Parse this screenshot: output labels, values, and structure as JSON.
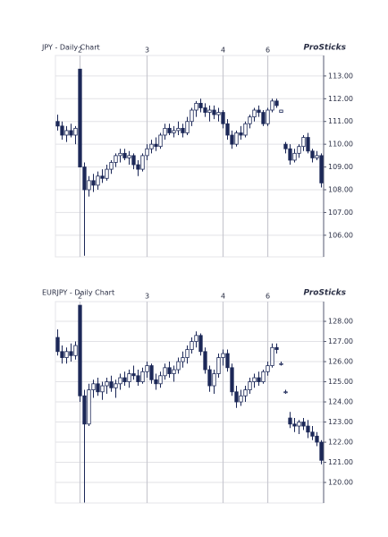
{
  "chart_data": [
    {
      "type": "candlestick",
      "title": "JPY - Daily Chart",
      "logo_text": "ProSticks",
      "color": "#1c2858",
      "grid": true,
      "categories": [
        null,
        null,
        null,
        null,
        null,
        "2",
        null,
        null,
        null,
        null,
        null,
        null,
        null,
        null,
        null,
        null,
        null,
        null,
        null,
        null,
        "3",
        null,
        null,
        null,
        null,
        null,
        null,
        null,
        null,
        null,
        null,
        null,
        null,
        null,
        null,
        null,
        null,
        "4",
        null,
        null,
        null,
        null,
        null,
        null,
        null,
        null,
        null,
        "6",
        null,
        null,
        null,
        null,
        null,
        null,
        null,
        null,
        null,
        null,
        null,
        null
      ],
      "open": [
        111.0,
        110.8,
        110.4,
        110.6,
        110.4,
        113.3,
        109.0,
        108.0,
        108.4,
        108.2,
        108.6,
        108.5,
        108.9,
        109.2,
        109.5,
        109.6,
        109.4,
        109.5,
        109.1,
        108.9,
        109.5,
        109.8,
        110.0,
        109.9,
        110.4,
        110.7,
        110.5,
        110.6,
        110.7,
        110.5,
        111.0,
        111.5,
        111.8,
        111.6,
        111.4,
        111.5,
        111.3,
        111.4,
        110.9,
        110.4,
        110.0,
        110.5,
        110.4,
        110.9,
        111.2,
        111.5,
        111.4,
        110.9,
        111.5,
        111.9,
        111.4,
        110.0,
        109.8,
        109.3,
        109.6,
        109.9,
        110.3,
        109.7,
        109.4,
        109.5
      ],
      "high": [
        111.3,
        111.0,
        110.8,
        110.9,
        110.8,
        113.3,
        109.2,
        108.6,
        108.7,
        108.8,
        108.9,
        109.1,
        109.3,
        109.6,
        109.8,
        109.8,
        109.7,
        109.6,
        109.3,
        109.6,
        110.0,
        110.2,
        110.3,
        110.5,
        110.9,
        110.9,
        110.8,
        111.0,
        110.9,
        111.2,
        111.6,
        111.9,
        112.0,
        111.8,
        111.7,
        111.7,
        111.6,
        111.5,
        111.1,
        110.6,
        110.6,
        110.8,
        111.0,
        111.3,
        111.6,
        111.7,
        111.5,
        111.6,
        112.0,
        112.0,
        111.5,
        110.1,
        110.0,
        109.8,
        110.0,
        110.4,
        110.5,
        109.8,
        109.7,
        109.6
      ],
      "low": [
        110.6,
        110.2,
        110.1,
        110.3,
        110.0,
        109.0,
        105.1,
        107.7,
        107.9,
        108.0,
        108.3,
        108.4,
        108.7,
        109.0,
        109.2,
        109.3,
        109.1,
        108.9,
        108.6,
        108.8,
        109.3,
        109.6,
        109.7,
        109.8,
        110.2,
        110.4,
        110.3,
        110.4,
        110.3,
        110.4,
        110.8,
        111.2,
        111.4,
        111.2,
        111.0,
        111.1,
        111.0,
        110.7,
        110.2,
        109.8,
        109.9,
        110.2,
        110.3,
        110.7,
        111.0,
        111.2,
        110.8,
        110.8,
        111.4,
        111.6,
        111.4,
        109.6,
        109.1,
        109.2,
        109.4,
        109.7,
        109.6,
        109.2,
        109.3,
        108.1
      ],
      "close": [
        110.8,
        110.4,
        110.6,
        110.4,
        110.7,
        109.0,
        108.0,
        108.4,
        108.2,
        108.6,
        108.5,
        108.9,
        109.2,
        109.5,
        109.6,
        109.4,
        109.5,
        109.1,
        108.9,
        109.5,
        109.8,
        110.0,
        109.9,
        110.4,
        110.7,
        110.5,
        110.6,
        110.7,
        110.5,
        111.0,
        111.5,
        111.8,
        111.6,
        111.4,
        111.5,
        111.3,
        111.4,
        110.9,
        110.4,
        110.0,
        110.5,
        110.4,
        110.9,
        111.2,
        111.5,
        111.4,
        110.9,
        111.5,
        111.9,
        111.7,
        111.5,
        109.8,
        109.3,
        109.6,
        109.9,
        110.3,
        109.7,
        109.4,
        109.5,
        108.3
      ],
      "ylim": [
        105.05,
        113.9
      ],
      "yticks": [
        {
          "value": 113,
          "label": "113.00"
        },
        {
          "value": 112,
          "label": "112.00"
        },
        {
          "value": 111,
          "label": "111.00"
        },
        {
          "value": 110,
          "label": "110.00"
        },
        {
          "value": 109,
          "label": "109.00"
        },
        {
          "value": 108,
          "label": "108.00"
        },
        {
          "value": 107,
          "label": "107.00"
        },
        {
          "value": 106,
          "label": "106.00"
        }
      ]
    },
    {
      "type": "candlestick",
      "title": "EURJPY - Daily Chart",
      "logo_text": "ProSticks",
      "color": "#1c2858",
      "grid": true,
      "categories": [
        null,
        null,
        null,
        null,
        null,
        "2",
        null,
        null,
        null,
        null,
        null,
        null,
        null,
        null,
        null,
        null,
        null,
        null,
        null,
        null,
        "3",
        null,
        null,
        null,
        null,
        null,
        null,
        null,
        null,
        null,
        null,
        null,
        null,
        null,
        null,
        null,
        null,
        "4",
        null,
        null,
        null,
        null,
        null,
        null,
        null,
        null,
        null,
        "6",
        null,
        null,
        null,
        null,
        null,
        null,
        null,
        null,
        null,
        null,
        null,
        null
      ],
      "open": [
        127.2,
        126.5,
        126.2,
        126.5,
        126.3,
        128.8,
        124.3,
        122.9,
        124.6,
        124.9,
        124.5,
        124.8,
        125.0,
        124.7,
        124.9,
        125.2,
        125.0,
        125.4,
        125.3,
        125.0,
        125.5,
        125.8,
        125.1,
        124.9,
        125.3,
        125.7,
        125.4,
        125.6,
        126.0,
        126.2,
        126.6,
        127.0,
        127.3,
        126.5,
        125.6,
        124.8,
        125.4,
        126.2,
        126.4,
        125.7,
        124.5,
        124.0,
        124.3,
        124.6,
        125.0,
        125.2,
        125.0,
        125.5,
        125.8,
        126.7,
        125.9,
        124.5,
        123.2,
        122.9,
        122.8,
        123.0,
        122.8,
        122.5,
        122.3,
        122.0
      ],
      "high": [
        127.6,
        126.8,
        126.7,
        126.9,
        127.0,
        128.8,
        124.6,
        124.9,
        125.1,
        125.2,
        125.0,
        125.2,
        125.3,
        125.1,
        125.4,
        125.5,
        125.6,
        125.8,
        125.6,
        125.7,
        126.0,
        125.9,
        125.4,
        125.5,
        125.9,
        126.0,
        125.8,
        126.2,
        126.5,
        126.8,
        127.2,
        127.5,
        127.4,
        126.7,
        125.8,
        125.6,
        126.4,
        126.6,
        126.6,
        125.9,
        124.8,
        124.6,
        124.8,
        125.2,
        125.4,
        125.5,
        125.6,
        126.0,
        126.9,
        126.9,
        126.0,
        124.6,
        123.5,
        123.2,
        123.1,
        123.2,
        123.1,
        122.8,
        122.5,
        122.1
      ],
      "low": [
        126.3,
        125.9,
        125.9,
        126.0,
        126.1,
        124.0,
        119.0,
        122.8,
        124.2,
        124.3,
        124.1,
        124.4,
        124.5,
        124.2,
        124.6,
        124.8,
        124.7,
        125.1,
        124.8,
        124.9,
        125.2,
        124.9,
        124.6,
        124.7,
        125.1,
        125.2,
        125.0,
        125.4,
        125.7,
        125.9,
        126.4,
        126.7,
        126.3,
        125.4,
        124.5,
        124.4,
        125.2,
        125.8,
        125.5,
        124.3,
        123.7,
        123.8,
        124.0,
        124.4,
        124.7,
        124.8,
        124.9,
        125.3,
        125.7,
        126.4,
        125.8,
        124.4,
        122.7,
        122.5,
        122.4,
        122.6,
        122.2,
        122.1,
        121.8,
        120.9
      ],
      "close": [
        126.5,
        126.2,
        126.5,
        126.3,
        126.8,
        124.3,
        122.9,
        124.6,
        124.9,
        124.5,
        124.8,
        125.0,
        124.7,
        124.9,
        125.2,
        125.0,
        125.4,
        125.3,
        125.0,
        125.5,
        125.8,
        125.1,
        124.9,
        125.3,
        125.7,
        125.4,
        125.6,
        126.0,
        126.2,
        126.6,
        127.0,
        127.3,
        126.5,
        125.6,
        124.8,
        125.4,
        126.2,
        126.4,
        125.7,
        124.5,
        124.0,
        124.3,
        124.6,
        125.0,
        125.2,
        125.0,
        125.5,
        125.8,
        126.7,
        126.6,
        125.9,
        124.5,
        122.9,
        122.8,
        123.0,
        122.8,
        122.5,
        122.3,
        122.0,
        121.1
      ],
      "ylim": [
        118.98,
        128.98
      ],
      "yticks": [
        {
          "value": 128,
          "label": "128.00"
        },
        {
          "value": 127,
          "label": "127.00"
        },
        {
          "value": 126,
          "label": "126.00"
        },
        {
          "value": 125,
          "label": "125.00"
        },
        {
          "value": 124,
          "label": "124.00"
        },
        {
          "value": 123,
          "label": "123.00"
        },
        {
          "value": 122,
          "label": "122.00"
        },
        {
          "value": 121,
          "label": "121.00"
        },
        {
          "value": 120,
          "label": "120.00"
        }
      ]
    }
  ]
}
